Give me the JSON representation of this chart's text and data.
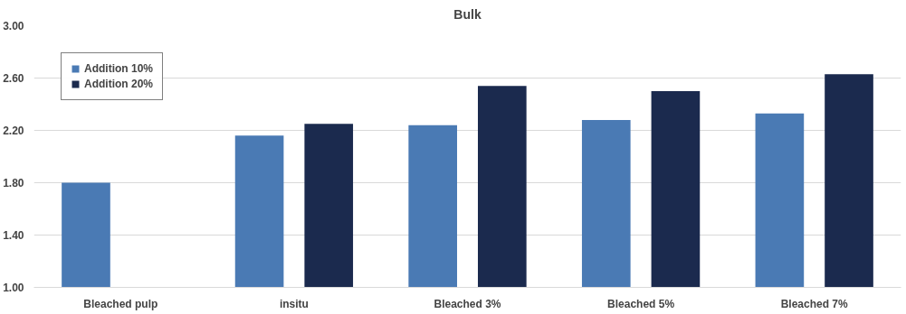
{
  "chart_data": {
    "type": "bar",
    "title": "Bulk",
    "categories": [
      "Bleached pulp",
      "insitu",
      "Bleached 3%",
      "Bleached 5%",
      "Bleached 7%"
    ],
    "series": [
      {
        "name": "Addition 10%",
        "color": "#4a7ab4",
        "values": [
          1.8,
          2.16,
          2.24,
          2.28,
          2.33
        ]
      },
      {
        "name": "Addition 20%",
        "color": "#1b2a4e",
        "values": [
          null,
          2.25,
          2.54,
          2.5,
          2.63
        ]
      }
    ],
    "ylim": [
      1.0,
      3.0
    ],
    "yticks": [
      {
        "value": 1.0,
        "label": "1.00"
      },
      {
        "value": 1.4,
        "label": "1.40"
      },
      {
        "value": 1.8,
        "label": "1.80"
      },
      {
        "value": 2.2,
        "label": "2.20"
      },
      {
        "value": 2.6,
        "label": "2.60"
      },
      {
        "value": 3.0,
        "label": "3.00"
      }
    ],
    "grid": "y",
    "legend": "top left"
  }
}
